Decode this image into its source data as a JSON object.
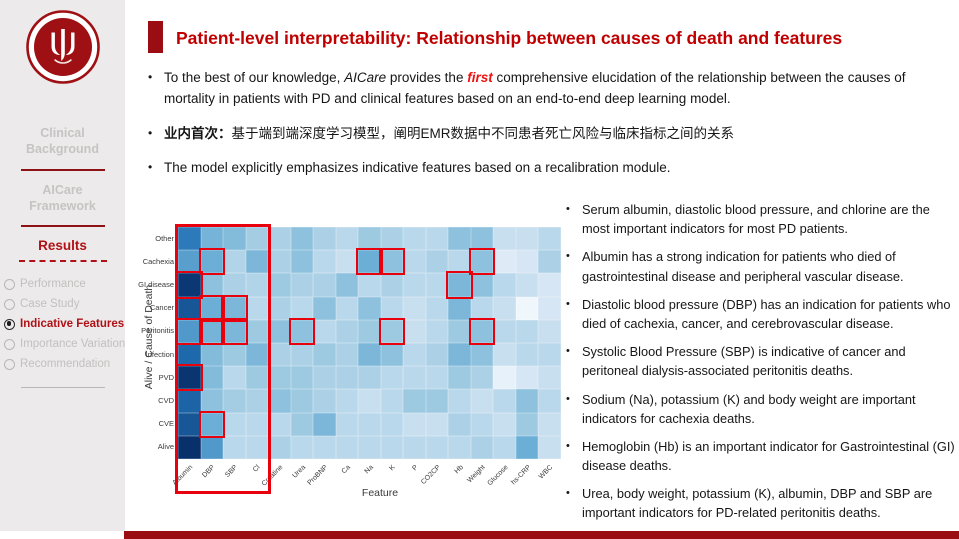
{
  "colors": {
    "accent_bar": "#9a0e13",
    "title_red": "#c00000",
    "highlight_red": "#e8000d",
    "footer_bar": "#9a0e13",
    "sidebar_bg": "#eceaea",
    "inactive_gray": "#c2bfbf",
    "active_red": "#b01116"
  },
  "sidebar": {
    "logo": "peking-university-seal",
    "sections": [
      "Clinical Background",
      "AICare Framework"
    ],
    "results_label": "Results",
    "nav_items": [
      {
        "label": "Performance",
        "selected": false
      },
      {
        "label": "Case Study",
        "selected": false
      },
      {
        "label": "Indicative Features",
        "selected": true
      },
      {
        "label": "Importance Variation",
        "selected": false
      },
      {
        "label": "Recommendation",
        "selected": false
      }
    ]
  },
  "header": {
    "title": "Patient-level interpretability: Relationship between causes of death and features"
  },
  "bullets": [
    {
      "segments": [
        {
          "t": "To the best of our knowledge, ",
          "s": "n"
        },
        {
          "t": "AICare",
          "s": "i"
        },
        {
          "t": " provides the ",
          "s": "n"
        },
        {
          "t": "first",
          "s": "r"
        },
        {
          "t": " comprehensive elucidation of the relationship between the causes of mortality in patients with PD and clinical features based on an end-to-end deep learning model.",
          "s": "n"
        }
      ]
    },
    {
      "segments": [
        {
          "t": "业内首次：",
          "s": "b"
        },
        {
          "t": "基于端到端深度学习模型，阐明EMR数据中不同患者死亡风险与临床指标之间的关系",
          "s": "n"
        }
      ]
    },
    {
      "segments": [
        {
          "t": "The model explicitly emphasizes indicative features based on a recalibration module.",
          "s": "n"
        }
      ]
    }
  ],
  "right_bullets": [
    "Serum albumin, diastolic blood pressure, and chlorine are the most important indicators for most PD patients.",
    "Albumin has a strong indication for patients who died of gastrointestinal disease and peripheral vascular disease.",
    "Diastolic blood pressure (DBP) has an indication for patients who died of cachexia, cancer, and cerebrovascular disease.",
    "Systolic Blood Pressure (SBP) is indicative of cancer and peritoneal dialysis-associated peritonitis deaths.",
    "Sodium (Na), potassium (K) and body weight are important indicators for cachexia deaths.",
    "Hemoglobin (Hb) is an important indicator for Gastrointestinal (GI) disease deaths.",
    "Urea, body weight, potassium (K), albumin, DBP and SBP are important indicators for PD-related peritonitis deaths."
  ],
  "chart_data": {
    "type": "heatmap",
    "title": "",
    "xlabel": "Feature",
    "ylabel": "Alive / Cause of Death",
    "colormap": "Blues",
    "columns": [
      "Albumin",
      "DBP",
      "SBP",
      "Cl",
      "Creatine",
      "Urea",
      "ProBNP",
      "Ca",
      "Na",
      "K",
      "P",
      "CO2CP",
      "Hb",
      "Weight",
      "Glucose",
      "hs-CRP",
      "WBC"
    ],
    "rows": [
      "Other",
      "Cachexia",
      "GI disease",
      "Cancer",
      "Peritonitis",
      "Infection",
      "PVD",
      "CVD",
      "CVE",
      "Alive"
    ],
    "values": [
      [
        0.72,
        0.52,
        0.48,
        0.38,
        0.35,
        0.45,
        0.35,
        0.3,
        0.4,
        0.35,
        0.3,
        0.3,
        0.45,
        0.45,
        0.25,
        0.25,
        0.3
      ],
      [
        0.6,
        0.55,
        0.33,
        0.5,
        0.35,
        0.45,
        0.3,
        0.25,
        0.55,
        0.45,
        0.3,
        0.35,
        0.3,
        0.45,
        0.15,
        0.2,
        0.35
      ],
      [
        0.97,
        0.45,
        0.35,
        0.33,
        0.4,
        0.35,
        0.35,
        0.45,
        0.3,
        0.35,
        0.3,
        0.3,
        0.5,
        0.45,
        0.3,
        0.25,
        0.2
      ],
      [
        0.85,
        0.55,
        0.5,
        0.3,
        0.35,
        0.3,
        0.45,
        0.3,
        0.45,
        0.3,
        0.25,
        0.3,
        0.5,
        0.3,
        0.25,
        0.05,
        0.2
      ],
      [
        0.62,
        0.52,
        0.5,
        0.4,
        0.45,
        0.45,
        0.3,
        0.35,
        0.4,
        0.4,
        0.25,
        0.3,
        0.4,
        0.45,
        0.3,
        0.3,
        0.25
      ],
      [
        0.78,
        0.48,
        0.4,
        0.5,
        0.35,
        0.35,
        0.4,
        0.35,
        0.5,
        0.45,
        0.3,
        0.35,
        0.5,
        0.45,
        0.25,
        0.3,
        0.3
      ],
      [
        0.98,
        0.48,
        0.3,
        0.4,
        0.4,
        0.4,
        0.35,
        0.35,
        0.35,
        0.3,
        0.3,
        0.3,
        0.4,
        0.35,
        0.1,
        0.2,
        0.25
      ],
      [
        0.8,
        0.45,
        0.38,
        0.35,
        0.45,
        0.4,
        0.35,
        0.3,
        0.25,
        0.3,
        0.4,
        0.4,
        0.3,
        0.25,
        0.3,
        0.45,
        0.3
      ],
      [
        0.85,
        0.55,
        0.3,
        0.3,
        0.3,
        0.4,
        0.5,
        0.3,
        0.3,
        0.3,
        0.25,
        0.25,
        0.35,
        0.3,
        0.25,
        0.4,
        0.25
      ],
      [
        1.0,
        0.62,
        0.3,
        0.3,
        0.35,
        0.3,
        0.3,
        0.3,
        0.3,
        0.3,
        0.3,
        0.3,
        0.3,
        0.35,
        0.3,
        0.55,
        0.25
      ]
    ],
    "highlight_color": "#e8000d",
    "highlight_cells": [
      [
        "Cachexia",
        "DBP"
      ],
      [
        "Cachexia",
        "Na"
      ],
      [
        "Cachexia",
        "K"
      ],
      [
        "Cachexia",
        "Weight"
      ],
      [
        "GI disease",
        "Albumin"
      ],
      [
        "GI disease",
        "Hb"
      ],
      [
        "Cancer",
        "DBP"
      ],
      [
        "Cancer",
        "SBP"
      ],
      [
        "Peritonitis",
        "Albumin"
      ],
      [
        "Peritonitis",
        "DBP"
      ],
      [
        "Peritonitis",
        "SBP"
      ],
      [
        "Peritonitis",
        "Urea"
      ],
      [
        "Peritonitis",
        "K"
      ],
      [
        "Peritonitis",
        "Weight"
      ],
      [
        "PVD",
        "Albumin"
      ],
      [
        "CVE",
        "DBP"
      ]
    ],
    "highlight_column_band": [
      "Albumin",
      "DBP",
      "SBP",
      "Cl"
    ]
  }
}
